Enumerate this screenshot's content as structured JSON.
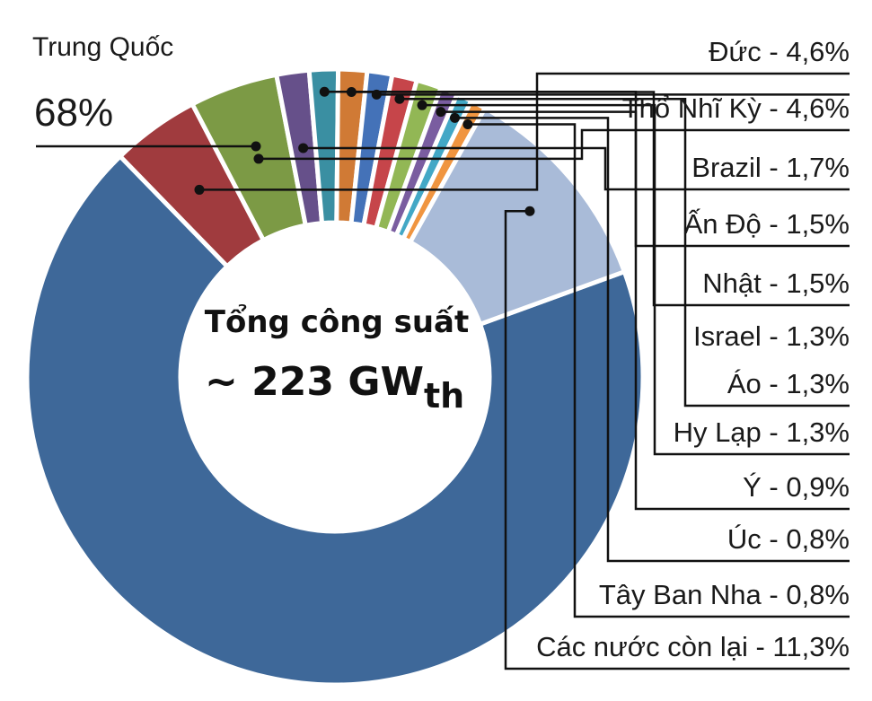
{
  "chart_data": {
    "type": "pie",
    "variant": "donut",
    "center_title": "Tổng công suất",
    "center_value": "~ 223 GW",
    "center_value_subscript": "th",
    "categories": [
      "Trung Quốc",
      "Đức",
      "Thổ Nhĩ Kỳ",
      "Brazil",
      "Ấn Độ",
      "Nhật",
      "Israel",
      "Áo",
      "Hy Lạp",
      "Ý",
      "Úc",
      "Tây Ban Nha",
      "Các nước còn lại"
    ],
    "values": [
      68,
      4.6,
      4.6,
      1.7,
      1.5,
      1.5,
      1.3,
      1.3,
      1.3,
      0.9,
      0.8,
      0.8,
      11.3
    ],
    "unit": "%",
    "colors": [
      "#3e6899",
      "#a03b3e",
      "#7c9a45",
      "#66508a",
      "#3a8fa2",
      "#d07a35",
      "#4472b8",
      "#c6454a",
      "#92b755",
      "#7a5da0",
      "#43a8c6",
      "#f09540",
      "#a9bbd8"
    ],
    "labels": {
      "china_name": "Trung Quốc",
      "china_value": "68%",
      "right": [
        "Đức - 4,6%",
        "Thổ Nhĩ Kỳ - 4,6%",
        "Brazil - 1,7%",
        "Ấn Độ - 1,5%",
        "Nhật - 1,5%",
        "Israel - 1,3%",
        "Áo - 1,3%",
        "Hy Lạp - 1,3%",
        "Ý - 0,9%",
        "Úc - 0,8%",
        "Tây Ban Nha - 0,8%",
        "Các nước còn lại - 11,3%"
      ]
    },
    "legend": "callout labels at right"
  }
}
